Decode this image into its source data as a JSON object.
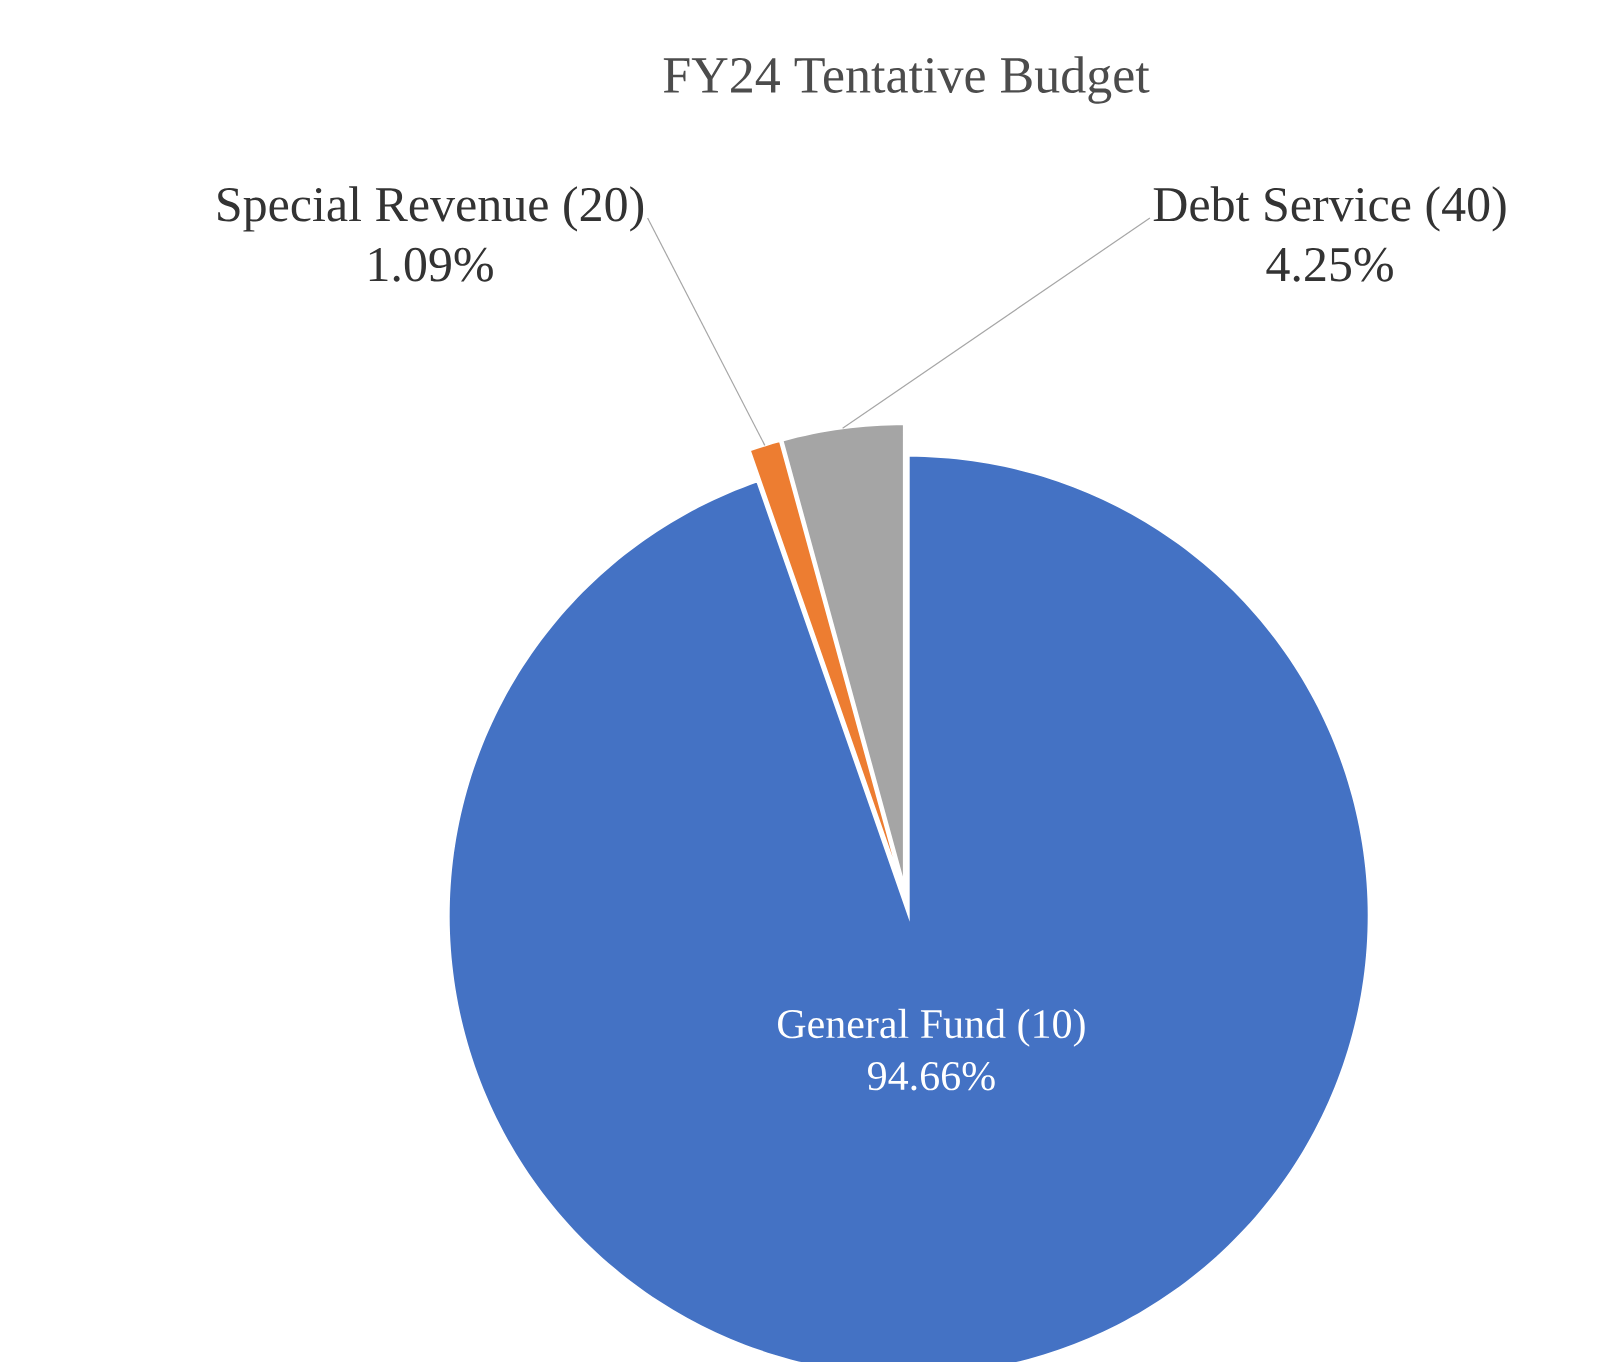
{
  "chart_data": {
    "type": "pie",
    "title": "FY24 Tentative Budget",
    "categories": [
      "General Fund (10)",
      "Special Revenue (20)",
      "Debt Service (40)"
    ],
    "values": [
      94.66,
      1.09,
      4.25
    ],
    "value_labels": [
      "94.66%",
      "1.09%",
      "4.25%"
    ],
    "colors": [
      "#4472c4",
      "#ed7d31",
      "#a5a5a5"
    ]
  }
}
